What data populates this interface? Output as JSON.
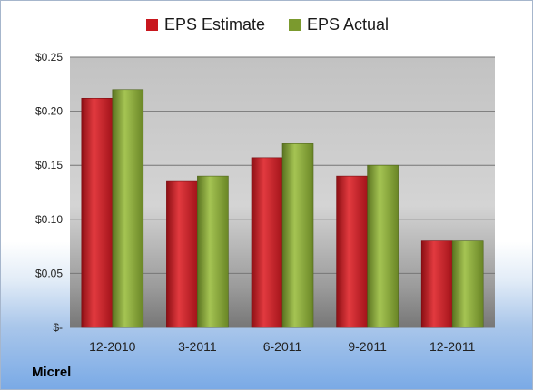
{
  "chart_data": {
    "type": "bar",
    "categories": [
      "12-2010",
      "3-2011",
      "6-2011",
      "9-2011",
      "12-2011"
    ],
    "series": [
      {
        "name": "EPS Estimate",
        "values": [
          0.212,
          0.135,
          0.157,
          0.14,
          0.08
        ],
        "color": "#c8161d"
      },
      {
        "name": "EPS Actual",
        "values": [
          0.22,
          0.14,
          0.17,
          0.15,
          0.08
        ],
        "color": "#7b9a2e"
      }
    ],
    "yticks": [
      {
        "value": 0.25,
        "label": "$0.25"
      },
      {
        "value": 0.2,
        "label": "$0.20"
      },
      {
        "value": 0.15,
        "label": "$0.15"
      },
      {
        "value": 0.1,
        "label": "$0.10"
      },
      {
        "value": 0.05,
        "label": "$0.05"
      },
      {
        "value": 0,
        "label": "$-"
      }
    ],
    "ylim": [
      0,
      0.25
    ],
    "grid": true,
    "legend_position": "top-center"
  },
  "footer": {
    "company": "Micrel"
  }
}
